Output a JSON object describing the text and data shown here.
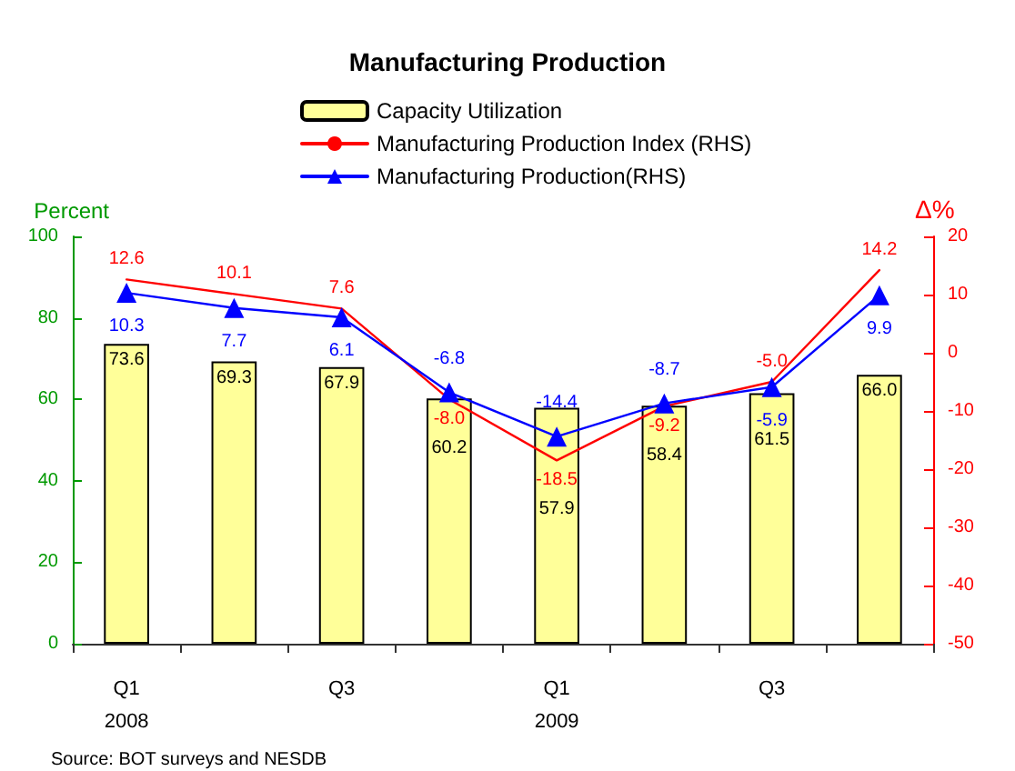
{
  "chart_data": {
    "type": "bar",
    "title": "Manufacturing Production",
    "categories": [
      "Q1\n2008",
      null,
      "Q3",
      null,
      "Q1\n2009",
      null,
      "Q3",
      null
    ],
    "series": [
      {
        "name": "Capacity Utilization",
        "color": "#ffff99",
        "values": [
          73.6,
          69.3,
          67.9,
          60.2,
          57.9,
          58.4,
          61.5,
          66.0
        ],
        "value_labels": [
          "73.6",
          "69.3",
          "67.9",
          "60.2",
          "57.9",
          "58.4",
          "61.5",
          "66.0"
        ]
      },
      {
        "name": "Manufacturing Production Index (RHS)",
        "type": "line",
        "axis": "y2",
        "color": "#ff0000",
        "marker": "none",
        "values": [
          12.6,
          10.1,
          7.6,
          -8.0,
          -18.5,
          -9.2,
          -5.0,
          14.2
        ],
        "value_labels": [
          "12.6",
          "10.1",
          "7.6",
          "-8.0",
          "-18.5",
          "-9.2",
          "-5.0",
          "14.2"
        ]
      },
      {
        "name": "Manufacturing Production(RHS)",
        "type": "line",
        "axis": "y2",
        "color": "#0000ff",
        "marker": "triangle",
        "values": [
          10.3,
          7.7,
          6.1,
          -6.8,
          -14.4,
          -8.7,
          -5.9,
          9.9
        ],
        "value_labels": [
          "10.3",
          "7.7",
          "6.1",
          "-6.8",
          "-14.4",
          "-8.7",
          "-5.9",
          "9.9"
        ]
      }
    ],
    "ylabel": "Percent",
    "y2label": "Δ%",
    "ylim": [
      0,
      100
    ],
    "yticks": [
      0,
      20,
      40,
      60,
      80,
      100
    ],
    "y2lim": [
      -50,
      20
    ],
    "y2ticks": [
      -50,
      -40,
      -30,
      -20,
      -10,
      0,
      10,
      20
    ],
    "legend": "top",
    "grid": false,
    "annotations": [
      "Source: BOT surveys and NESDB"
    ]
  }
}
